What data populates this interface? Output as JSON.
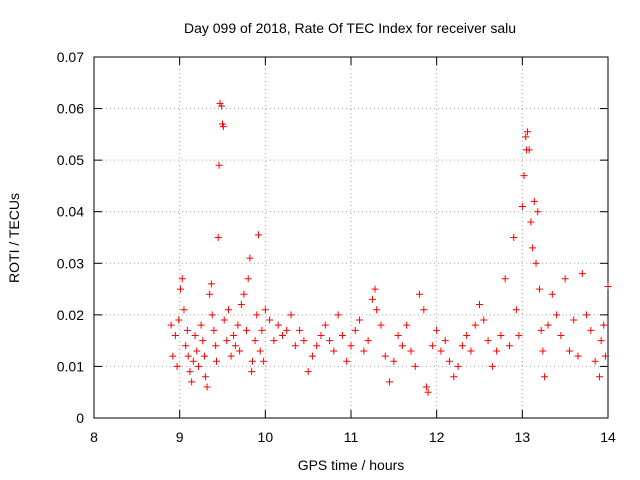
{
  "chart_data": {
    "type": "scatter",
    "title": "Day 099 of 2018, Rate Of TEC Index for receiver salu",
    "xlabel": "GPS time / hours",
    "ylabel": "ROTI / TECUs",
    "xlim": [
      8,
      14
    ],
    "ylim": [
      0,
      0.07
    ],
    "x_ticks": [
      8,
      9,
      10,
      11,
      12,
      13,
      14
    ],
    "x_tick_labels": [
      "8",
      "9",
      "10",
      "11",
      "12",
      "13",
      "14"
    ],
    "y_ticks": [
      0,
      0.01,
      0.02,
      0.03,
      0.04,
      0.05,
      0.06,
      0.07
    ],
    "y_tick_labels": [
      "0",
      "0.01",
      "0.02",
      "0.03",
      "0.04",
      "0.05",
      "0.06",
      "0.07"
    ],
    "grid": true,
    "marker": "+",
    "color": "#ff0000",
    "series": [
      {
        "name": "ROTI",
        "points": [
          [
            8.9,
            0.018
          ],
          [
            8.92,
            0.012
          ],
          [
            8.95,
            0.016
          ],
          [
            8.97,
            0.01
          ],
          [
            8.99,
            0.019
          ],
          [
            9.01,
            0.025
          ],
          [
            9.03,
            0.027
          ],
          [
            9.05,
            0.021
          ],
          [
            9.07,
            0.014
          ],
          [
            9.09,
            0.017
          ],
          [
            9.1,
            0.012
          ],
          [
            9.12,
            0.009
          ],
          [
            9.14,
            0.007
          ],
          [
            9.16,
            0.011
          ],
          [
            9.18,
            0.016
          ],
          [
            9.2,
            0.013
          ],
          [
            9.22,
            0.01
          ],
          [
            9.25,
            0.018
          ],
          [
            9.27,
            0.015
          ],
          [
            9.29,
            0.012
          ],
          [
            9.3,
            0.008
          ],
          [
            9.32,
            0.006
          ],
          [
            9.35,
            0.024
          ],
          [
            9.37,
            0.026
          ],
          [
            9.38,
            0.02
          ],
          [
            9.4,
            0.017
          ],
          [
            9.42,
            0.014
          ],
          [
            9.43,
            0.011
          ],
          [
            9.45,
            0.035
          ],
          [
            9.46,
            0.049
          ],
          [
            9.47,
            0.061
          ],
          [
            9.49,
            0.0605
          ],
          [
            9.5,
            0.057
          ],
          [
            9.51,
            0.0565
          ],
          [
            9.52,
            0.019
          ],
          [
            9.55,
            0.015
          ],
          [
            9.57,
            0.021
          ],
          [
            9.6,
            0.012
          ],
          [
            9.63,
            0.016
          ],
          [
            9.65,
            0.014
          ],
          [
            9.68,
            0.018
          ],
          [
            9.7,
            0.013
          ],
          [
            9.72,
            0.022
          ],
          [
            9.75,
            0.024
          ],
          [
            9.78,
            0.017
          ],
          [
            9.8,
            0.027
          ],
          [
            9.82,
            0.031
          ],
          [
            9.84,
            0.009
          ],
          [
            9.85,
            0.011
          ],
          [
            9.88,
            0.015
          ],
          [
            9.9,
            0.02
          ],
          [
            9.92,
            0.0355
          ],
          [
            9.94,
            0.013
          ],
          [
            9.96,
            0.017
          ],
          [
            9.98,
            0.011
          ],
          [
            10.0,
            0.021
          ],
          [
            10.05,
            0.019
          ],
          [
            10.1,
            0.015
          ],
          [
            10.15,
            0.018
          ],
          [
            10.2,
            0.016
          ],
          [
            10.25,
            0.017
          ],
          [
            10.3,
            0.02
          ],
          [
            10.35,
            0.014
          ],
          [
            10.4,
            0.017
          ],
          [
            10.45,
            0.015
          ],
          [
            10.5,
            0.009
          ],
          [
            10.55,
            0.012
          ],
          [
            10.6,
            0.014
          ],
          [
            10.65,
            0.016
          ],
          [
            10.7,
            0.018
          ],
          [
            10.75,
            0.015
          ],
          [
            10.8,
            0.013
          ],
          [
            10.85,
            0.02
          ],
          [
            10.9,
            0.016
          ],
          [
            10.95,
            0.011
          ],
          [
            11.0,
            0.014
          ],
          [
            11.05,
            0.017
          ],
          [
            11.1,
            0.019
          ],
          [
            11.15,
            0.013
          ],
          [
            11.2,
            0.015
          ],
          [
            11.25,
            0.023
          ],
          [
            11.28,
            0.025
          ],
          [
            11.3,
            0.021
          ],
          [
            11.35,
            0.018
          ],
          [
            11.4,
            0.012
          ],
          [
            11.45,
            0.007
          ],
          [
            11.5,
            0.011
          ],
          [
            11.55,
            0.016
          ],
          [
            11.6,
            0.014
          ],
          [
            11.65,
            0.018
          ],
          [
            11.7,
            0.013
          ],
          [
            11.75,
            0.01
          ],
          [
            11.8,
            0.024
          ],
          [
            11.85,
            0.021
          ],
          [
            11.88,
            0.006
          ],
          [
            11.9,
            0.005
          ],
          [
            11.95,
            0.014
          ],
          [
            12.0,
            0.017
          ],
          [
            12.05,
            0.013
          ],
          [
            12.1,
            0.015
          ],
          [
            12.15,
            0.011
          ],
          [
            12.2,
            0.008
          ],
          [
            12.25,
            0.01
          ],
          [
            12.3,
            0.014
          ],
          [
            12.35,
            0.016
          ],
          [
            12.4,
            0.013
          ],
          [
            12.45,
            0.018
          ],
          [
            12.5,
            0.022
          ],
          [
            12.55,
            0.019
          ],
          [
            12.6,
            0.015
          ],
          [
            12.65,
            0.01
          ],
          [
            12.7,
            0.013
          ],
          [
            12.75,
            0.016
          ],
          [
            12.8,
            0.027
          ],
          [
            12.85,
            0.014
          ],
          [
            12.9,
            0.035
          ],
          [
            12.93,
            0.021
          ],
          [
            12.96,
            0.016
          ],
          [
            13.0,
            0.041
          ],
          [
            13.02,
            0.047
          ],
          [
            13.04,
            0.0545
          ],
          [
            13.05,
            0.052
          ],
          [
            13.06,
            0.0555
          ],
          [
            13.08,
            0.052
          ],
          [
            13.1,
            0.038
          ],
          [
            13.12,
            0.033
          ],
          [
            13.14,
            0.042
          ],
          [
            13.16,
            0.03
          ],
          [
            13.18,
            0.04
          ],
          [
            13.2,
            0.025
          ],
          [
            13.22,
            0.017
          ],
          [
            13.24,
            0.013
          ],
          [
            13.26,
            0.008
          ],
          [
            13.3,
            0.018
          ],
          [
            13.35,
            0.024
          ],
          [
            13.4,
            0.02
          ],
          [
            13.45,
            0.016
          ],
          [
            13.5,
            0.027
          ],
          [
            13.55,
            0.013
          ],
          [
            13.6,
            0.019
          ],
          [
            13.65,
            0.012
          ],
          [
            13.7,
            0.028
          ],
          [
            13.75,
            0.02
          ],
          [
            13.8,
            0.017
          ],
          [
            13.85,
            0.011
          ],
          [
            13.9,
            0.008
          ],
          [
            13.92,
            0.015
          ],
          [
            13.95,
            0.018
          ],
          [
            13.97,
            0.012
          ],
          [
            14.0,
            0.0255
          ]
        ]
      }
    ]
  }
}
